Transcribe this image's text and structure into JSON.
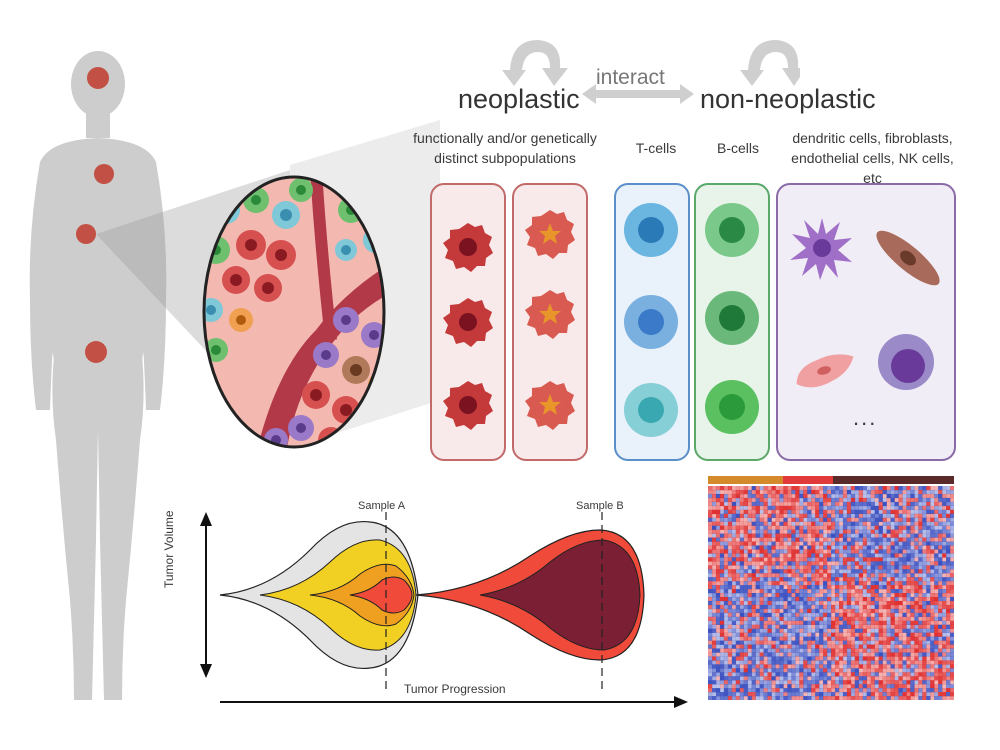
{
  "header": {
    "neoplastic": "neoplastic",
    "interact": "interact",
    "non_neoplastic": "non-neoplastic"
  },
  "subheaders": {
    "neoplastic_desc": "functionally and/or genetically distinct subpopulations",
    "t_cells": "T-cells",
    "b_cells": "B-cells",
    "other_cells": "dendritic cells, fibroblasts, endothelial cells, NK cells, etc",
    "ellipsis": "..."
  },
  "growth_plot": {
    "sample_a": "Sample A",
    "sample_b": "Sample B",
    "y_axis": "Tumor Volume",
    "x_axis": "Tumor Progression"
  },
  "colors": {
    "neoplastic_border": "#c26a6a",
    "neoplastic_fill": "#f8eaea",
    "tcell_border": "#5a8fc9",
    "tcell_fill": "#e9f1fb",
    "bcell_border": "#5aa86a",
    "bcell_fill": "#e8f4ea",
    "other_border": "#8b6aa8",
    "other_fill": "#f1edf6",
    "body": "#cfcfcf",
    "tumor_site": "#c0392b",
    "heatmap_high": "#e03030",
    "heatmap_low": "#3a4fc0"
  },
  "heatmap": {
    "annotation_bar": [
      "#d4892a",
      "#e03a3a",
      "#5a2a2a"
    ]
  }
}
